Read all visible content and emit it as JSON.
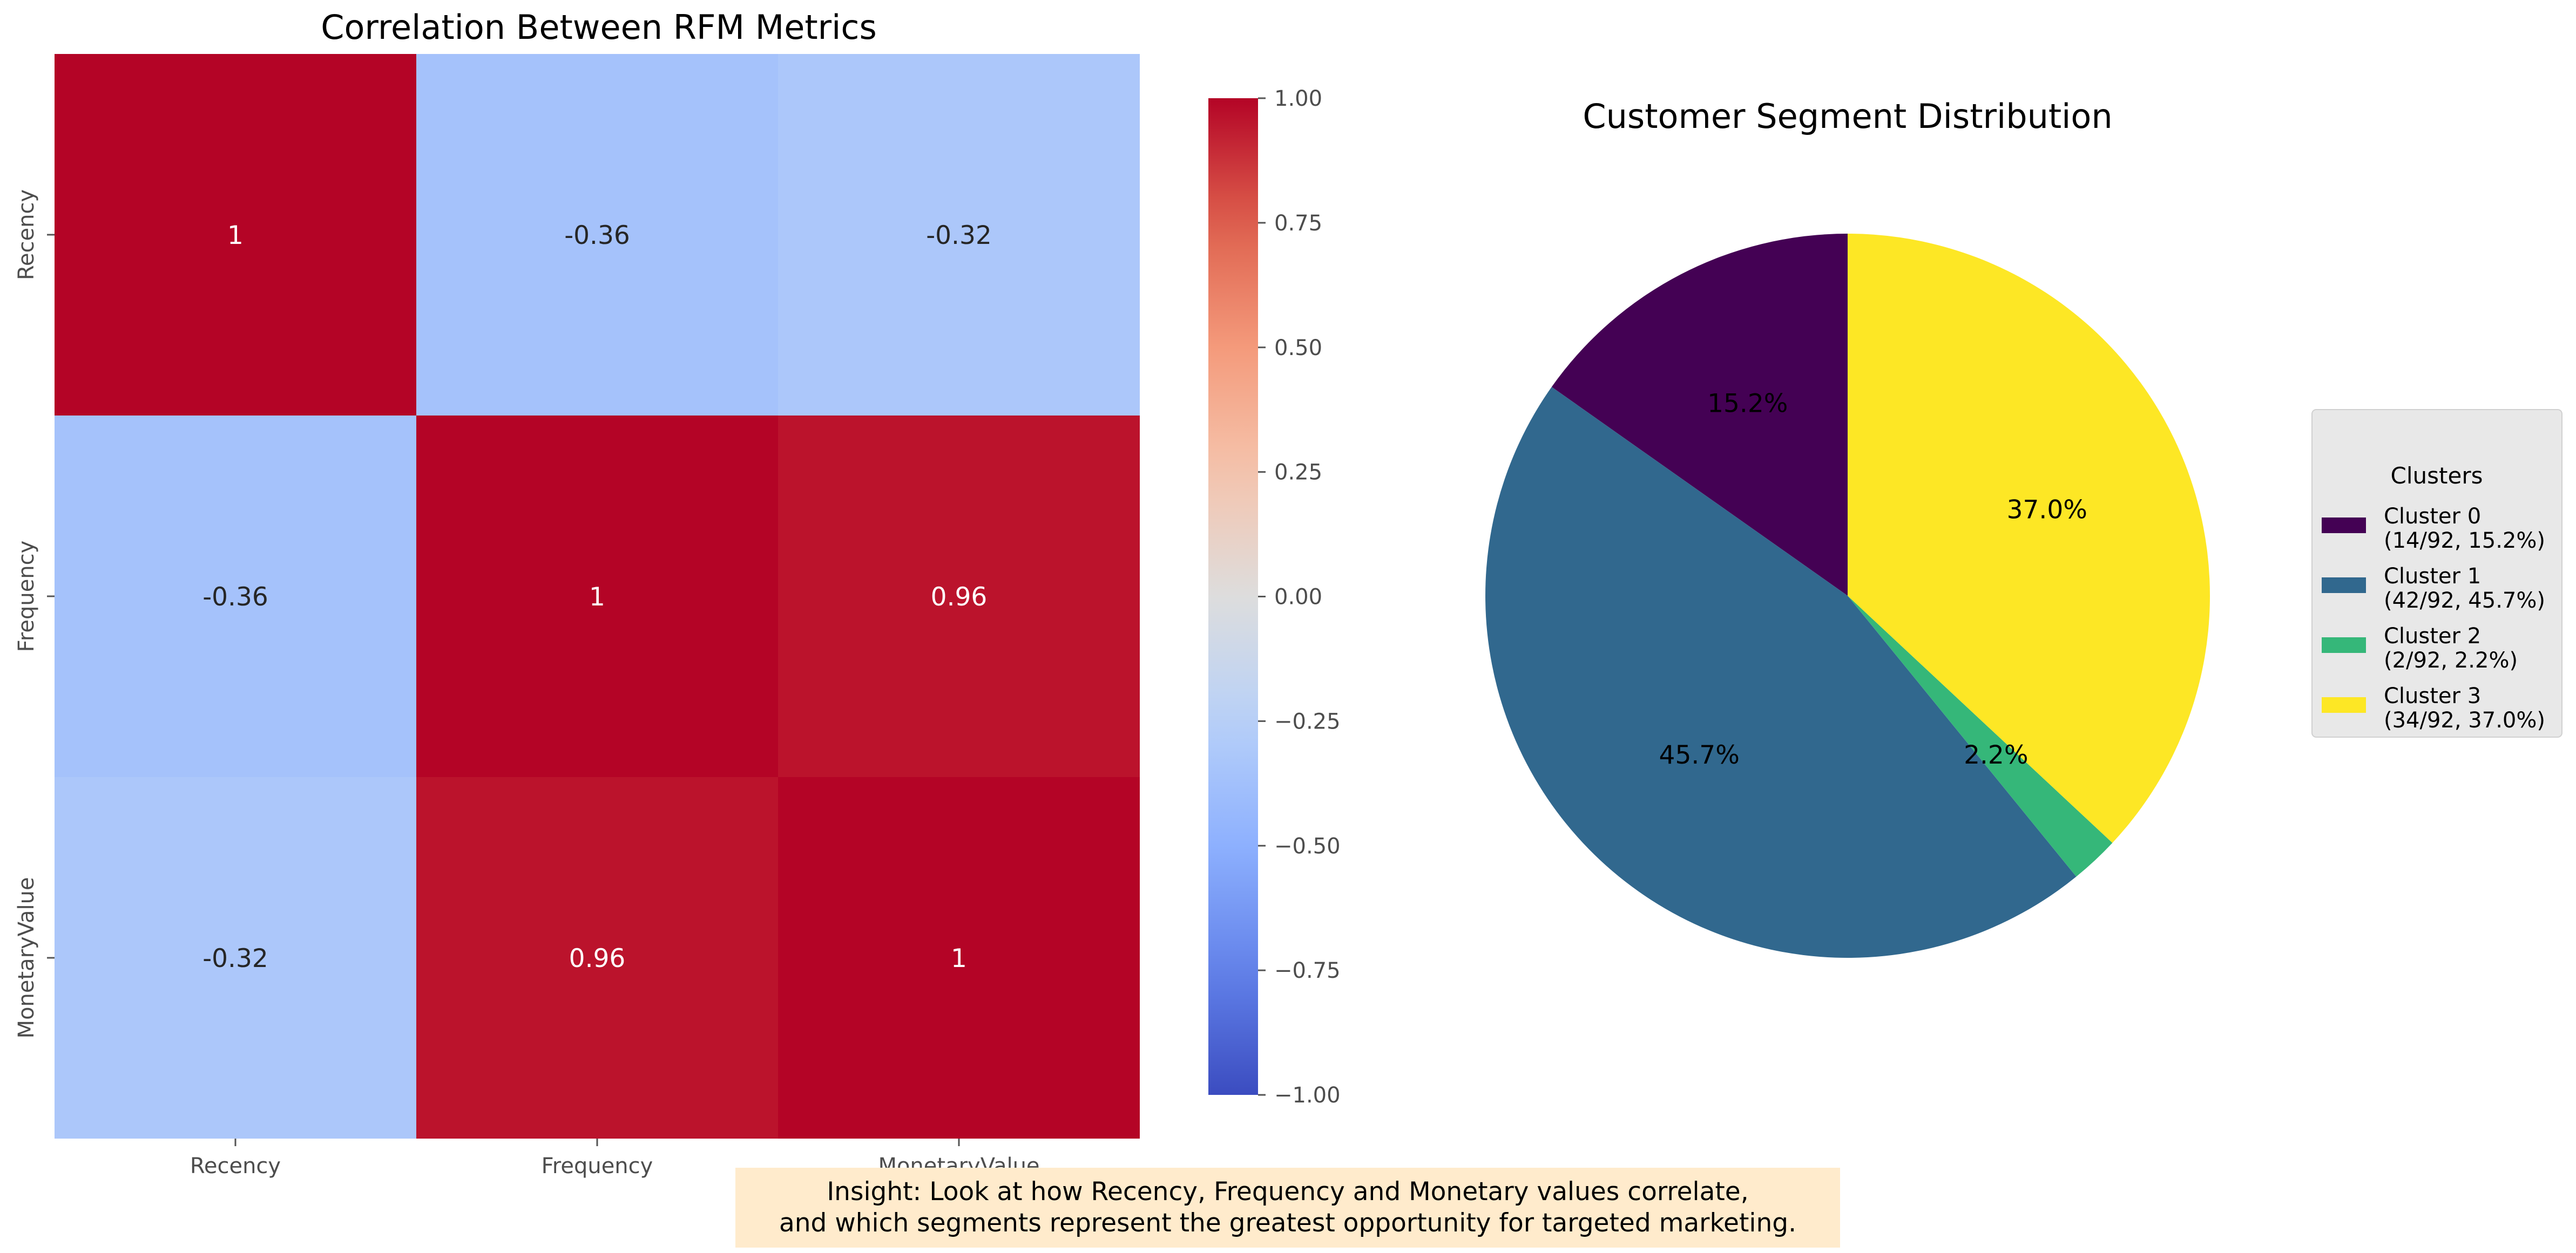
{
  "chart_data": [
    {
      "type": "heatmap",
      "title": "Correlation Between RFM Metrics",
      "rows": [
        "Recency",
        "Frequency",
        "MonetaryValue"
      ],
      "columns": [
        "Recency",
        "Frequency",
        "MonetaryValue"
      ],
      "values": [
        [
          1,
          -0.36,
          -0.32
        ],
        [
          -0.36,
          1,
          0.96
        ],
        [
          -0.32,
          0.96,
          1
        ]
      ],
      "annotations": [
        [
          "1",
          "-0.36",
          "-0.32"
        ],
        [
          "-0.36",
          "1",
          "0.96"
        ],
        [
          "-0.32",
          "0.96",
          "1"
        ]
      ],
      "colormap": "coolwarm",
      "vmin": -1,
      "vmax": 1,
      "colorbar_ticks": [
        "1.00",
        "0.75",
        "0.50",
        "0.25",
        "0.00",
        "−0.25",
        "−0.50",
        "−0.75",
        "−1.00"
      ],
      "colorbar_tick_values": [
        1,
        0.75,
        0.5,
        0.25,
        0,
        -0.25,
        -0.5,
        -0.75,
        -1
      ]
    },
    {
      "type": "pie",
      "title": "Customer Segment Distribution",
      "categories": [
        "Cluster 0",
        "Cluster 1",
        "Cluster 2",
        "Cluster 3"
      ],
      "values": [
        14,
        42,
        2,
        34
      ],
      "percent_labels": [
        "15.2%",
        "45.7%",
        "2.2%",
        "37.0%"
      ],
      "colors": [
        "#440154",
        "#31688e",
        "#35b779",
        "#fde725"
      ],
      "start_angle_deg": 90,
      "direction": "counterclockwise",
      "legend": {
        "title": "Clusters",
        "placement": "right",
        "entries": [
          {
            "line1": "Cluster 0",
            "line2": "(14/92, 15.2%)"
          },
          {
            "line1": "Cluster 1",
            "line2": "(42/92, 45.7%)"
          },
          {
            "line1": "Cluster 2",
            "line2": "(2/92, 2.2%)"
          },
          {
            "line1": "Cluster 3",
            "line2": "(34/92, 37.0%)"
          }
        ]
      }
    }
  ],
  "insight": {
    "line1": "Insight: Look at how Recency, Frequency and Monetary values correlate,",
    "line2": "and which segments represent the greatest opportunity for targeted marketing."
  }
}
